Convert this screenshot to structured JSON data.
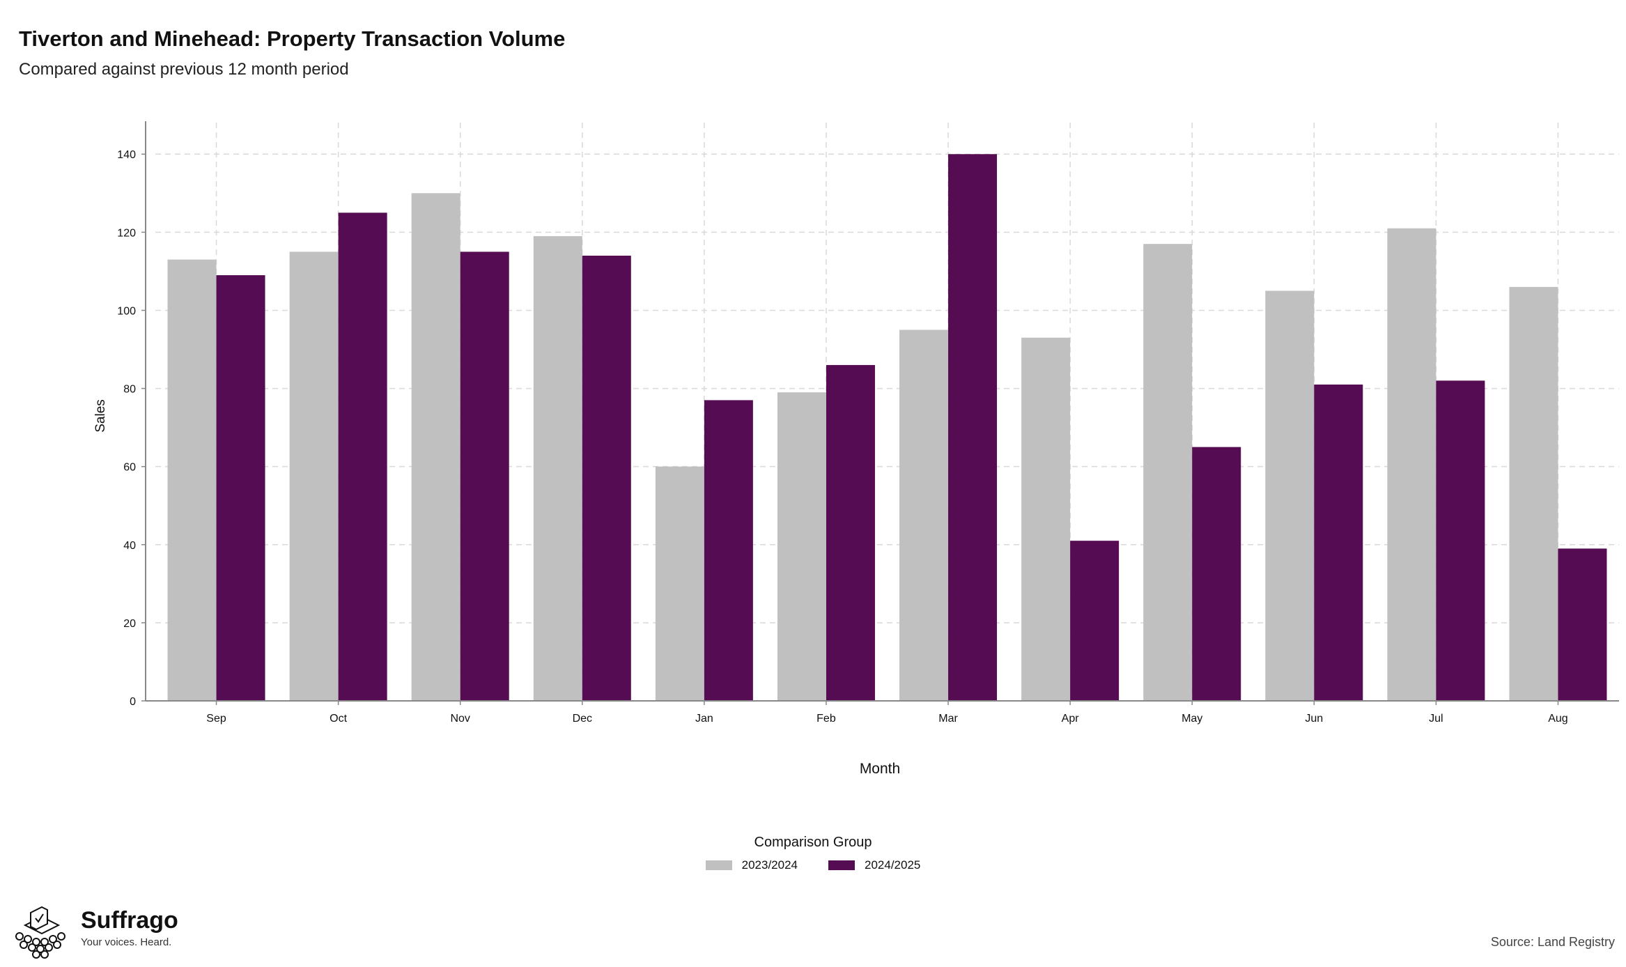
{
  "title": "Tiverton and Minehead: Property Transaction Volume",
  "subtitle": "Compared against previous 12 month period",
  "colors": {
    "series_2023": "#c0c0c0",
    "series_2024": "#560c52",
    "grid": "#d9d9d9",
    "axis": "#888888"
  },
  "chart_data": {
    "type": "bar",
    "title": "Tiverton and Minehead: Property Transaction Volume",
    "subtitle": "Compared against previous 12 month period",
    "xlabel": "Month",
    "ylabel": "Sales",
    "categories": [
      "Sep",
      "Oct",
      "Nov",
      "Dec",
      "Jan",
      "Feb",
      "Mar",
      "Apr",
      "May",
      "Jun",
      "Jul",
      "Aug"
    ],
    "series": [
      {
        "name": "2023/2024",
        "values": [
          113,
          115,
          130,
          119,
          60,
          79,
          95,
          93,
          117,
          105,
          121,
          106
        ]
      },
      {
        "name": "2024/2025",
        "values": [
          109,
          125,
          115,
          114,
          77,
          86,
          140,
          41,
          65,
          81,
          82,
          39
        ]
      }
    ],
    "ylim": [
      0,
      147
    ],
    "yticks": [
      0,
      20,
      40,
      60,
      80,
      100,
      120,
      140
    ],
    "grid": true,
    "legend_title": "Comparison Group",
    "legend_position": "bottom-center"
  },
  "legend": {
    "title": "Comparison Group",
    "items": [
      "2023/2024",
      "2024/2025"
    ]
  },
  "brand": {
    "name": "Suffrago",
    "tagline": "Your voices. Heard.",
    "logo_icon": "ballot-box-icon"
  },
  "source": "Source: Land Registry"
}
